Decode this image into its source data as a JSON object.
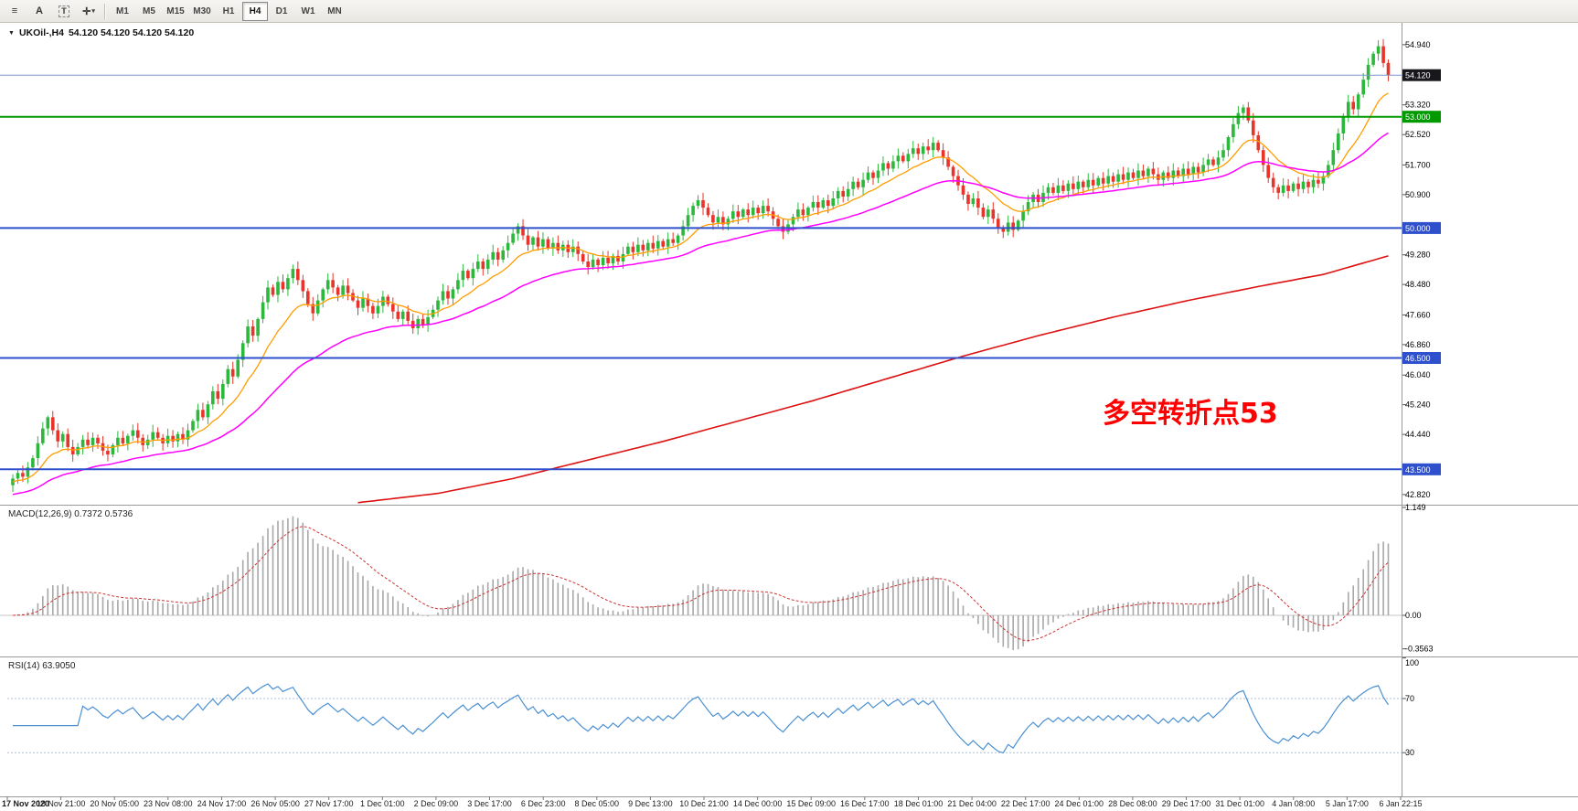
{
  "toolbar": {
    "icons": [
      {
        "name": "chart-list-icon",
        "glyph": "≡"
      },
      {
        "name": "annotation-letter-icon",
        "glyph": "A"
      },
      {
        "name": "text-box-tool-icon",
        "glyph": "T",
        "boxed": true
      },
      {
        "name": "cursor-tools-dropdown-icon",
        "glyph": "✛",
        "caret": true
      }
    ],
    "timeframes": [
      "M1",
      "M5",
      "M15",
      "M30",
      "H1",
      "H4",
      "D1",
      "W1",
      "MN"
    ],
    "active_timeframe": "H4"
  },
  "chart": {
    "symbol": "UKOil-,H4",
    "ohlc": "54.120 54.120 54.120 54.120",
    "annotation": "多空转折点53",
    "annotation_color": "#ff0000",
    "up_color": "#2db83d",
    "down_color": "#e8342a",
    "price_axis": {
      "ticks": [
        {
          "label": "54.940",
          "price": 54.94
        },
        {
          "label": "53.320",
          "price": 53.32
        },
        {
          "label": "52.520",
          "price": 52.52
        },
        {
          "label": "51.700",
          "price": 51.7
        },
        {
          "label": "50.900",
          "price": 50.9
        },
        {
          "label": "49.280",
          "price": 49.28
        },
        {
          "label": "48.480",
          "price": 48.48
        },
        {
          "label": "47.660",
          "price": 47.66
        },
        {
          "label": "46.860",
          "price": 46.86
        },
        {
          "label": "46.040",
          "price": 46.04
        },
        {
          "label": "45.240",
          "price": 45.24
        },
        {
          "label": "44.440",
          "price": 44.44
        },
        {
          "label": "42.820",
          "price": 42.82
        }
      ],
      "badges": [
        {
          "label": "54.120",
          "price": 54.12,
          "bg": "#18181c"
        },
        {
          "label": "53.000",
          "price": 53.0,
          "bg": "#009900"
        },
        {
          "label": "50.000",
          "price": 50.0,
          "bg": "#2e50cc"
        },
        {
          "label": "46.500",
          "price": 46.5,
          "bg": "#2e50cc"
        },
        {
          "label": "43.500",
          "price": 43.5,
          "bg": "#2e50cc"
        }
      ]
    },
    "hlines": [
      {
        "price": 54.12,
        "color": "#7b95cc",
        "width": 1
      },
      {
        "price": 53.0,
        "color": "#009900",
        "width": 2
      },
      {
        "price": 50.0,
        "color": "#2e50cc",
        "width": 2
      },
      {
        "price": 46.5,
        "color": "#2e50cc",
        "width": 2
      },
      {
        "price": 43.5,
        "color": "#2e50cc",
        "width": 2
      }
    ]
  },
  "macd": {
    "label": "MACD(12,26,9) 0.7372 0.5736",
    "axis": [
      {
        "label": "1.149",
        "value": 1.149
      },
      {
        "label": "0.00",
        "value": 0
      },
      {
        "label": "-0.3563",
        "value": -0.3563
      }
    ]
  },
  "rsi": {
    "label": "RSI(14) 63.9050",
    "axis": [
      {
        "label": "100",
        "value": 100
      },
      {
        "label": "70",
        "value": 70
      },
      {
        "label": "30",
        "value": 30
      }
    ]
  },
  "time_axis": [
    "17 Nov 2020",
    "18 Nov 21:00",
    "20 Nov 05:00",
    "23 Nov 08:00",
    "24 Nov 17:00",
    "26 Nov 05:00",
    "27 Nov 17:00",
    "1 Dec 01:00",
    "2 Dec 09:00",
    "3 Dec 17:00",
    "6 Dec 23:00",
    "8 Dec 05:00",
    "9 Dec 13:00",
    "10 Dec 21:00",
    "14 Dec 00:00",
    "15 Dec 09:00",
    "16 Dec 17:00",
    "18 Dec 01:00",
    "21 Dec 04:00",
    "22 Dec 17:00",
    "24 Dec 01:00",
    "28 Dec 08:00",
    "29 Dec 17:00",
    "31 Dec 01:00",
    "4 Jan 08:00",
    "5 Jan 17:00",
    "6 Jan 22:15"
  ],
  "chart_data": {
    "type": "candlestick",
    "symbol": "UKOil-",
    "timeframe": "H4",
    "ohlc_current": [
      54.12,
      54.12,
      54.12,
      54.12
    ],
    "ylim": [
      42.57,
      55.53
    ],
    "closes": [
      43.25,
      43.4,
      43.3,
      43.55,
      43.8,
      44.2,
      44.6,
      44.9,
      44.55,
      44.25,
      44.45,
      44.1,
      43.9,
      44.1,
      44.3,
      44.15,
      44.35,
      44.2,
      44.0,
      43.9,
      44.15,
      44.35,
      44.2,
      44.4,
      44.55,
      44.35,
      44.15,
      44.3,
      44.5,
      44.35,
      44.2,
      44.4,
      44.25,
      44.45,
      44.3,
      44.55,
      44.8,
      45.1,
      44.9,
      45.25,
      45.6,
      45.4,
      45.8,
      46.2,
      46.0,
      46.45,
      46.9,
      47.35,
      47.1,
      47.55,
      48.0,
      48.4,
      48.2,
      48.55,
      48.35,
      48.65,
      48.9,
      48.6,
      48.3,
      47.95,
      47.7,
      48.05,
      48.35,
      48.6,
      48.4,
      48.2,
      48.45,
      48.25,
      48.05,
      47.85,
      48.1,
      47.9,
      47.7,
      47.9,
      48.15,
      47.95,
      47.75,
      47.55,
      47.75,
      47.5,
      47.3,
      47.55,
      47.4,
      47.6,
      47.8,
      48.05,
      48.3,
      48.1,
      48.35,
      48.6,
      48.85,
      48.65,
      48.9,
      49.1,
      48.9,
      49.15,
      49.35,
      49.15,
      49.4,
      49.6,
      49.85,
      50.05,
      49.8,
      49.55,
      49.75,
      49.5,
      49.7,
      49.45,
      49.6,
      49.4,
      49.55,
      49.35,
      49.5,
      49.3,
      49.1,
      48.95,
      49.15,
      49.0,
      49.2,
      49.05,
      49.25,
      49.1,
      49.3,
      49.5,
      49.35,
      49.55,
      49.4,
      49.6,
      49.45,
      49.65,
      49.5,
      49.7,
      49.6,
      49.8,
      50.05,
      50.35,
      50.6,
      50.75,
      50.55,
      50.35,
      50.15,
      50.3,
      50.1,
      50.25,
      50.45,
      50.3,
      50.5,
      50.35,
      50.55,
      50.4,
      50.6,
      50.45,
      50.25,
      50.05,
      49.9,
      50.1,
      50.3,
      50.5,
      50.35,
      50.55,
      50.7,
      50.55,
      50.75,
      50.6,
      50.8,
      51.0,
      50.85,
      51.05,
      51.25,
      51.1,
      51.3,
      51.5,
      51.35,
      51.55,
      51.75,
      51.6,
      51.8,
      51.95,
      51.8,
      52.0,
      52.15,
      52.0,
      52.2,
      52.1,
      52.3,
      52.1,
      51.9,
      51.65,
      51.4,
      51.15,
      50.9,
      50.65,
      50.8,
      50.55,
      50.3,
      50.5,
      50.25,
      50.0,
      49.9,
      50.15,
      49.95,
      50.2,
      50.45,
      50.7,
      50.9,
      50.7,
      50.95,
      51.1,
      50.95,
      51.15,
      51.0,
      51.2,
      51.05,
      51.25,
      51.1,
      51.3,
      51.15,
      51.35,
      51.2,
      51.4,
      51.25,
      51.45,
      51.3,
      51.5,
      51.35,
      51.55,
      51.4,
      51.6,
      51.45,
      51.3,
      51.5,
      51.35,
      51.55,
      51.4,
      51.6,
      51.45,
      51.65,
      51.5,
      51.7,
      51.85,
      51.7,
      51.9,
      52.1,
      52.45,
      52.8,
      53.1,
      53.25,
      52.9,
      52.5,
      52.1,
      51.7,
      51.35,
      51.1,
      50.95,
      51.15,
      51.0,
      51.2,
      51.05,
      51.25,
      51.1,
      51.3,
      51.2,
      51.4,
      51.7,
      52.1,
      52.55,
      53.0,
      53.4,
      53.2,
      53.6,
      54.0,
      54.4,
      54.7,
      54.9,
      54.45,
      54.12
    ],
    "overlays": {
      "ma_fast": {
        "type": "ema",
        "period": 13,
        "color": "#ff9d00"
      },
      "ma_mid": {
        "type": "ema",
        "period": 40,
        "color": "#ff00ff"
      },
      "ma_slow_color": "#dd1111",
      "ma_slow_points": [
        [
          69,
          42.6
        ],
        [
          85,
          42.85
        ],
        [
          100,
          43.25
        ],
        [
          115,
          43.75
        ],
        [
          130,
          44.25
        ],
        [
          145,
          44.8
        ],
        [
          160,
          45.35
        ],
        [
          175,
          45.95
        ],
        [
          190,
          46.55
        ],
        [
          205,
          47.1
        ],
        [
          220,
          47.6
        ],
        [
          235,
          48.05
        ],
        [
          250,
          48.45
        ],
        [
          262,
          48.75
        ],
        [
          275,
          49.25
        ]
      ]
    },
    "hlines": [
      54.12,
      53.0,
      50.0,
      46.5,
      43.5
    ],
    "indicators": {
      "macd": {
        "fast": 12,
        "slow": 26,
        "signal": 9,
        "main": 0.7372,
        "signal_value": 0.5736,
        "axis_max": 1.149,
        "axis_min": -0.3563
      },
      "rsi": {
        "period": 14,
        "value": 63.905,
        "levels": [
          70,
          30
        ]
      }
    }
  }
}
